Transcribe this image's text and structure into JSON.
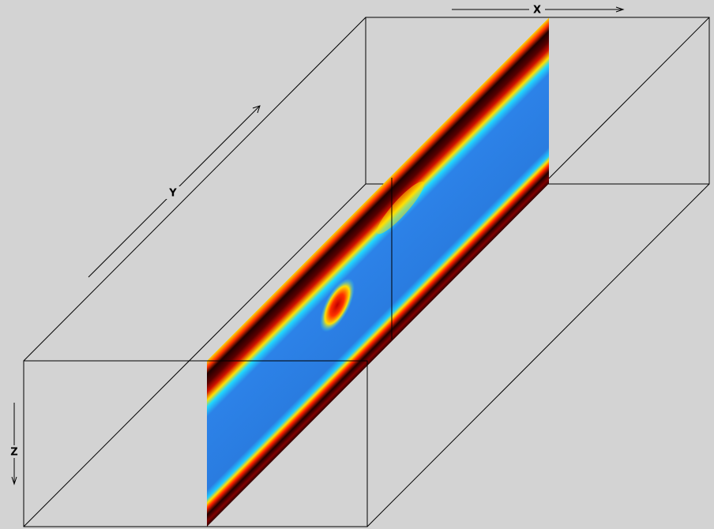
{
  "axes": {
    "x_label": "X",
    "y_label": "Y",
    "z_label": "Z"
  }
}
